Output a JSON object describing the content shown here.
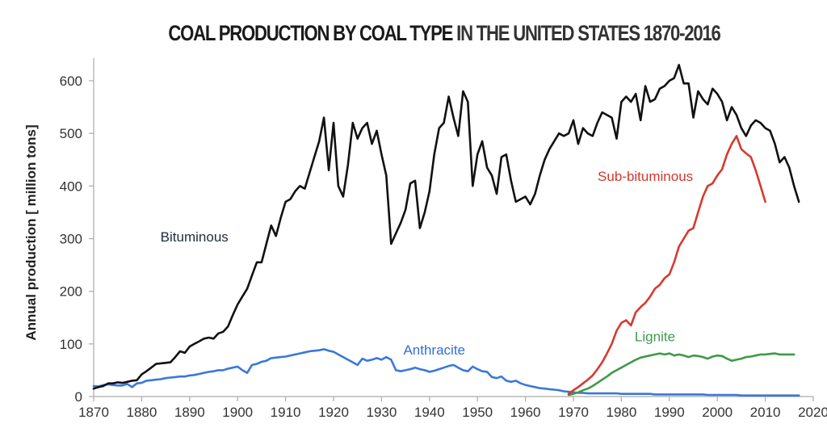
{
  "chart_data": {
    "type": "line",
    "title_part1": "COAL PRODUCTION BY COAL TYPE",
    "title_part2": "IN THE UNITED STATES 1870-2016",
    "xlabel": "",
    "ylabel": "Annual production [ million tons]",
    "xlim": [
      1870,
      2020
    ],
    "ylim": [
      0,
      640
    ],
    "x_ticks": [
      1870,
      1880,
      1890,
      1900,
      1910,
      1920,
      1930,
      1940,
      1950,
      1960,
      1970,
      1980,
      1990,
      2000,
      2010,
      2020
    ],
    "y_ticks": [
      0,
      100,
      200,
      300,
      400,
      500,
      600
    ],
    "grid": false,
    "legend": "inline labels",
    "series": [
      {
        "name": "Bituminous",
        "color": "#111111",
        "label_color": "#1f2d3d",
        "x_start": 1870,
        "values": [
          15,
          18,
          20,
          25,
          25,
          27,
          26,
          28,
          30,
          31,
          42,
          48,
          55,
          62,
          63,
          64,
          65,
          75,
          86,
          83,
          95,
          100,
          105,
          110,
          112,
          110,
          120,
          123,
          133,
          155,
          175,
          190,
          205,
          230,
          255,
          255,
          290,
          325,
          305,
          340,
          370,
          375,
          390,
          400,
          395,
          425,
          455,
          485,
          530,
          430,
          520,
          400,
          380,
          440,
          520,
          490,
          510,
          520,
          480,
          505,
          460,
          420,
          290,
          310,
          330,
          355,
          405,
          410,
          320,
          350,
          390,
          460,
          510,
          520,
          570,
          530,
          495,
          580,
          560,
          400,
          460,
          485,
          435,
          420,
          385,
          455,
          460,
          410,
          370,
          375,
          380,
          365,
          385,
          420,
          450,
          470,
          485,
          500,
          495,
          500,
          525,
          480,
          510,
          500,
          495,
          520,
          540,
          535,
          530,
          490,
          560,
          570,
          560,
          575,
          525,
          590,
          560,
          565,
          585,
          590,
          600,
          605,
          630,
          595,
          595,
          530,
          580,
          565,
          555,
          585,
          575,
          560,
          525,
          550,
          535,
          510,
          495,
          515,
          525,
          520,
          510,
          505,
          480,
          445,
          455,
          435,
          400,
          370
        ],
        "note": "approximate yearly values read from plot"
      },
      {
        "name": "Anthracite",
        "color": "#3a78d8",
        "label_color": "#2f6fd6",
        "x_start": 1870,
        "values": [
          20,
          19,
          22,
          23,
          22,
          21,
          21,
          24,
          18,
          25,
          26,
          30,
          31,
          32,
          33,
          35,
          36,
          37,
          38,
          38,
          40,
          41,
          43,
          45,
          47,
          48,
          50,
          50,
          53,
          55,
          57,
          50,
          45,
          60,
          62,
          66,
          68,
          73,
          74,
          75,
          76,
          78,
          80,
          82,
          84,
          86,
          87,
          88,
          90,
          87,
          85,
          80,
          75,
          70,
          65,
          60,
          72,
          68,
          70,
          73,
          70,
          75,
          70,
          50,
          48,
          50,
          52,
          55,
          52,
          50,
          47,
          49,
          52,
          55,
          58,
          60,
          55,
          50,
          48,
          57,
          52,
          48,
          47,
          37,
          35,
          38,
          30,
          28,
          30,
          25,
          22,
          20,
          18,
          16,
          15,
          14,
          13,
          12,
          10,
          9,
          8,
          7,
          7,
          6,
          6,
          6,
          6,
          6,
          6,
          6,
          5,
          5,
          5,
          5,
          5,
          5,
          5,
          4,
          4,
          4,
          4,
          4,
          4,
          4,
          4,
          4,
          4,
          4,
          3,
          3,
          3,
          3,
          3,
          3,
          3,
          2,
          2,
          2,
          2,
          2,
          2,
          2,
          2,
          2,
          2,
          2,
          2,
          2
        ],
        "note": "approximate yearly values read from plot"
      },
      {
        "name": "Sub-bituminous",
        "color": "#d53a2f",
        "label_color": "#d0382c",
        "x_start": 1969,
        "values": [
          5,
          12,
          18,
          25,
          32,
          40,
          52,
          65,
          82,
          100,
          125,
          140,
          145,
          135,
          160,
          170,
          178,
          190,
          205,
          212,
          225,
          232,
          255,
          285,
          300,
          315,
          320,
          350,
          380,
          400,
          405,
          420,
          432,
          460,
          480,
          495,
          470,
          462,
          455,
          430,
          400,
          370
        ]
      },
      {
        "name": "Lignite",
        "color": "#3f9a45",
        "label_color": "#3e9a4a",
        "x_start": 1969,
        "values": [
          3,
          5,
          8,
          12,
          15,
          20,
          26,
          32,
          38,
          45,
          50,
          55,
          60,
          65,
          70,
          74,
          76,
          78,
          80,
          82,
          80,
          82,
          78,
          80,
          78,
          75,
          78,
          77,
          75,
          72,
          76,
          78,
          77,
          72,
          68,
          70,
          72,
          75,
          76,
          78,
          80,
          80,
          81,
          82,
          80,
          80,
          80,
          80
        ]
      }
    ],
    "annotations": [
      {
        "text": "Bituminous",
        "series": "Bituminous",
        "x": 1891,
        "y": 295
      },
      {
        "text": "Anthracite",
        "series": "Anthracite",
        "x": 1941,
        "y": 80
      },
      {
        "text": "Sub-bituminous",
        "series": "Sub-bituminous",
        "x": 1985,
        "y": 410
      },
      {
        "text": "Lignite",
        "series": "Lignite",
        "x": 1987,
        "y": 105
      }
    ]
  }
}
